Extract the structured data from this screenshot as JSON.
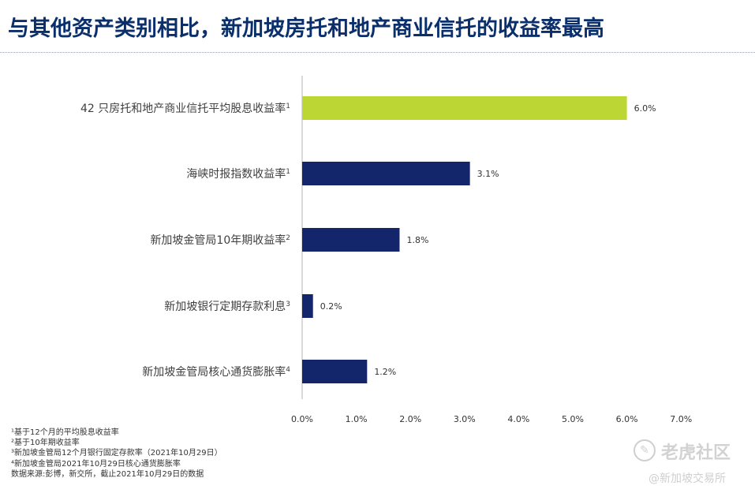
{
  "page": {
    "title": "与其他资产类别相比，新加坡房托和地产商业信托的收益率最高"
  },
  "chart_data": {
    "type": "bar",
    "orientation": "horizontal",
    "categories": [
      {
        "label": "42 只房托和地产商业信托平均股息收益率",
        "note": "1"
      },
      {
        "label": "海峡时报指数收益率",
        "note": "1"
      },
      {
        "label": "新加坡金管局10年期收益率",
        "note": "2"
      },
      {
        "label": "新加坡银行定期存款利息",
        "note": "3"
      },
      {
        "label": "新加坡金管局核心通货膨胀率",
        "note": "4"
      }
    ],
    "values": [
      6.0,
      3.1,
      1.8,
      0.2,
      1.2
    ],
    "value_labels": [
      "6.0%",
      "3.1%",
      "1.8%",
      "0.2%",
      "1.2%"
    ],
    "bar_colors": [
      "#bcd634",
      "#13266b",
      "#13266b",
      "#13266b",
      "#13266b"
    ],
    "xlim": [
      0,
      7
    ],
    "xticks": [
      "0.0%",
      "1.0%",
      "2.0%",
      "3.0%",
      "4.0%",
      "5.0%",
      "6.0%",
      "7.0%"
    ],
    "grid": false
  },
  "footnotes": [
    "¹基于12个月的平均股息收益率",
    "²基于10年期收益率",
    "³新加坡金管局12个月银行固定存款率（2021年10月29日）",
    "⁴新加坡金管局2021年10月29日核心通货膨胀率",
    "数据来源:彭博，新交所，截止2021年10月29日的数据"
  ],
  "watermark": {
    "logo_icon": "tiger-logo-icon",
    "brand": "老虎社区",
    "handle": "@新加坡交易所"
  }
}
